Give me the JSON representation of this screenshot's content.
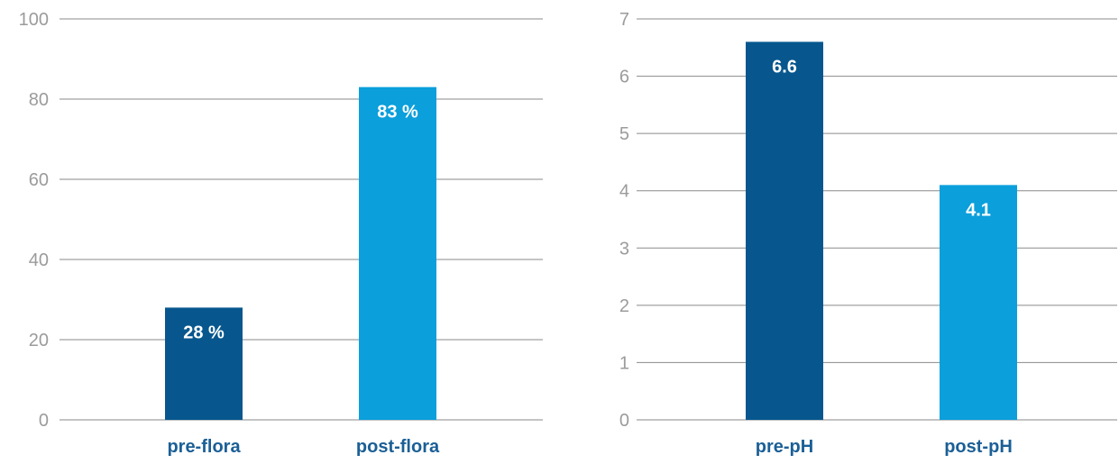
{
  "chart_data": [
    {
      "type": "bar",
      "categories": [
        "pre-flora",
        "post-flora"
      ],
      "values": [
        28,
        83
      ],
      "data_labels": [
        "28 %",
        "83 %"
      ],
      "colors": [
        "#07578e",
        "#0b9fdb"
      ],
      "yticks": [
        "0",
        "20",
        "40",
        "60",
        "80",
        "100"
      ],
      "ylim": [
        0,
        100
      ],
      "grid": true,
      "title": "",
      "xlabel": "",
      "ylabel": ""
    },
    {
      "type": "bar",
      "categories": [
        "pre-pH",
        "post-pH"
      ],
      "values": [
        6.6,
        4.1
      ],
      "data_labels": [
        "6.6",
        "4.1"
      ],
      "colors": [
        "#07578e",
        "#0b9fdb"
      ],
      "yticks": [
        "0",
        "1",
        "2",
        "3",
        "4",
        "5",
        "6",
        "7"
      ],
      "ylim": [
        0,
        7
      ],
      "grid": true,
      "title": "",
      "xlabel": "",
      "ylabel": ""
    }
  ]
}
